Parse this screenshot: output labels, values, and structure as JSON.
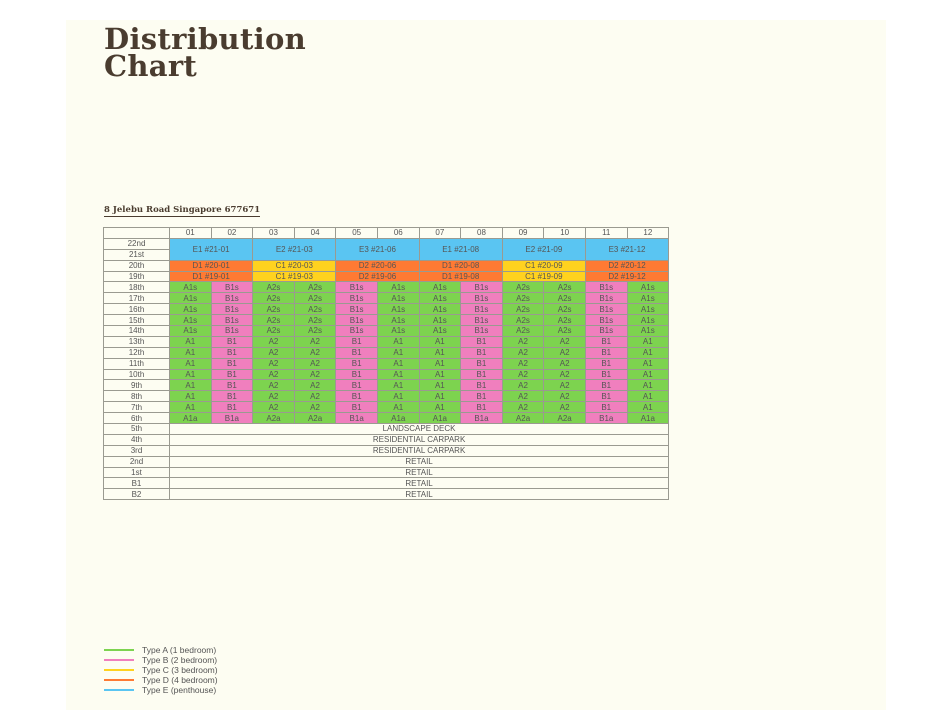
{
  "title_line1": "Distribution",
  "title_line2": "Chart",
  "address": "8 Jelebu Road Singapore 677671",
  "unit_columns": [
    "01",
    "02",
    "03",
    "04",
    "05",
    "06",
    "07",
    "08",
    "09",
    "10",
    "11",
    "12"
  ],
  "penthouse": {
    "floors": [
      "22nd",
      "21st"
    ],
    "units": [
      "E1 #21-01",
      "E2 #21-03",
      "E3 #21-06",
      "E1 #21-08",
      "E2 #21-09",
      "E3 #21-12"
    ]
  },
  "upper_floors": [
    {
      "floor": "20th",
      "units": [
        "D1 #20-01",
        "C1 #20-03",
        "D2 #20-06",
        "D1 #20-08",
        "C1 #20-09",
        "D2 #20-12"
      ]
    },
    {
      "floor": "19th",
      "units": [
        "D1 #19-01",
        "C1 #19-03",
        "D2 #19-06",
        "D1 #19-08",
        "C1 #19-09",
        "D2 #19-12"
      ]
    }
  ],
  "standard_floors": [
    {
      "floor": "18th",
      "units": [
        "A1s",
        "B1s",
        "A2s",
        "A2s",
        "B1s",
        "A1s",
        "A1s",
        "B1s",
        "A2s",
        "A2s",
        "B1s",
        "A1s"
      ]
    },
    {
      "floor": "17th",
      "units": [
        "A1s",
        "B1s",
        "A2s",
        "A2s",
        "B1s",
        "A1s",
        "A1s",
        "B1s",
        "A2s",
        "A2s",
        "B1s",
        "A1s"
      ]
    },
    {
      "floor": "16th",
      "units": [
        "A1s",
        "B1s",
        "A2s",
        "A2s",
        "B1s",
        "A1s",
        "A1s",
        "B1s",
        "A2s",
        "A2s",
        "B1s",
        "A1s"
      ]
    },
    {
      "floor": "15th",
      "units": [
        "A1s",
        "B1s",
        "A2s",
        "A2s",
        "B1s",
        "A1s",
        "A1s",
        "B1s",
        "A2s",
        "A2s",
        "B1s",
        "A1s"
      ]
    },
    {
      "floor": "14th",
      "units": [
        "A1s",
        "B1s",
        "A2s",
        "A2s",
        "B1s",
        "A1s",
        "A1s",
        "B1s",
        "A2s",
        "A2s",
        "B1s",
        "A1s"
      ]
    },
    {
      "floor": "13th",
      "units": [
        "A1",
        "B1",
        "A2",
        "A2",
        "B1",
        "A1",
        "A1",
        "B1",
        "A2",
        "A2",
        "B1",
        "A1"
      ]
    },
    {
      "floor": "12th",
      "units": [
        "A1",
        "B1",
        "A2",
        "A2",
        "B1",
        "A1",
        "A1",
        "B1",
        "A2",
        "A2",
        "B1",
        "A1"
      ]
    },
    {
      "floor": "11th",
      "units": [
        "A1",
        "B1",
        "A2",
        "A2",
        "B1",
        "A1",
        "A1",
        "B1",
        "A2",
        "A2",
        "B1",
        "A1"
      ]
    },
    {
      "floor": "10th",
      "units": [
        "A1",
        "B1",
        "A2",
        "A2",
        "B1",
        "A1",
        "A1",
        "B1",
        "A2",
        "A2",
        "B1",
        "A1"
      ]
    },
    {
      "floor": "9th",
      "units": [
        "A1",
        "B1",
        "A2",
        "A2",
        "B1",
        "A1",
        "A1",
        "B1",
        "A2",
        "A2",
        "B1",
        "A1"
      ]
    },
    {
      "floor": "8th",
      "units": [
        "A1",
        "B1",
        "A2",
        "A2",
        "B1",
        "A1",
        "A1",
        "B1",
        "A2",
        "A2",
        "B1",
        "A1"
      ]
    },
    {
      "floor": "7th",
      "units": [
        "A1",
        "B1",
        "A2",
        "A2",
        "B1",
        "A1",
        "A1",
        "B1",
        "A2",
        "A2",
        "B1",
        "A1"
      ]
    },
    {
      "floor": "6th",
      "units": [
        "A1a",
        "B1a",
        "A2a",
        "A2a",
        "B1a",
        "A1a",
        "A1a",
        "B1a",
        "A2a",
        "A2a",
        "B1a",
        "A1a"
      ]
    }
  ],
  "common_floors": [
    {
      "floor": "5th",
      "label": "LANDSCAPE DECK"
    },
    {
      "floor": "4th",
      "label": "RESIDENTIAL CARPARK"
    },
    {
      "floor": "3rd",
      "label": "RESIDENTIAL CARPARK"
    },
    {
      "floor": "2nd",
      "label": "RETAIL"
    },
    {
      "floor": "1st",
      "label": "RETAIL"
    },
    {
      "floor": "B1",
      "label": "RETAIL"
    },
    {
      "floor": "B2",
      "label": "RETAIL"
    }
  ],
  "colors": {
    "A": "#7dd34f",
    "B": "#f07fbe",
    "C": "#ffd21f",
    "D": "#ff7a33",
    "E": "#5ac5f2"
  },
  "legend": [
    {
      "type": "A",
      "label": "Type A (1 bedroom)"
    },
    {
      "type": "B",
      "label": "Type B (2 bedroom)"
    },
    {
      "type": "C",
      "label": "Type C (3 bedroom)"
    },
    {
      "type": "D",
      "label": "Type D (4 bedroom)"
    },
    {
      "type": "E",
      "label": "Type E (penthouse)"
    }
  ]
}
